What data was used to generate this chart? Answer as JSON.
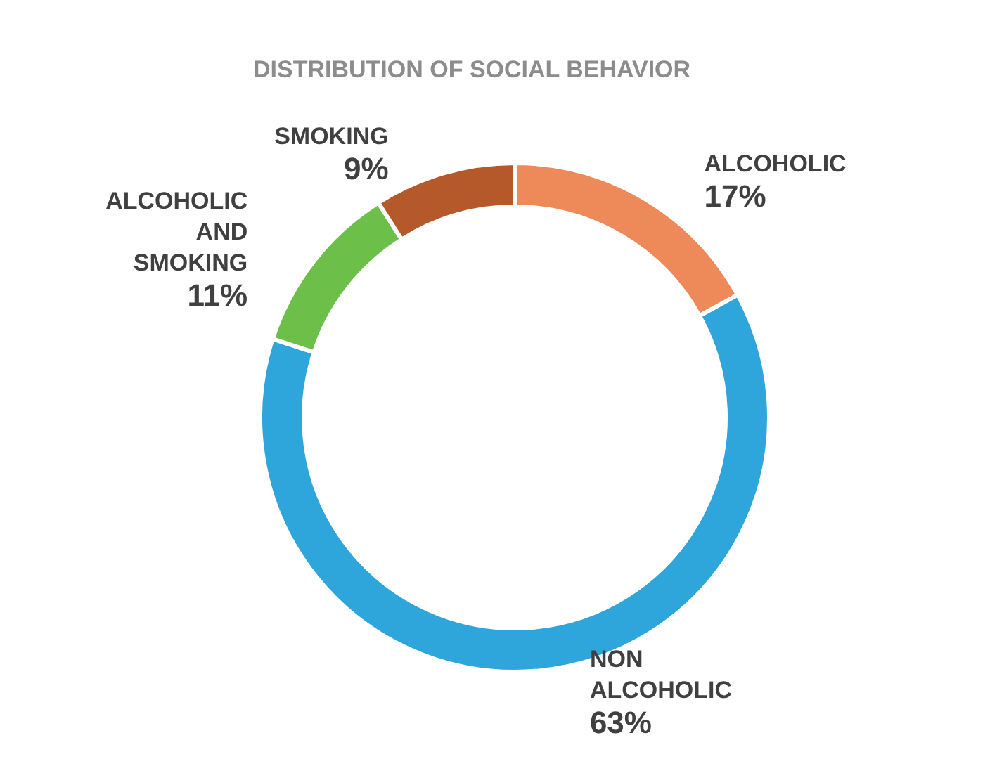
{
  "chart_data": {
    "type": "donut",
    "title": "DISTRIBUTION OF SOCIAL BEHAVIOR",
    "categories": [
      "ALCOHOLIC",
      "NON ALCOHOLIC",
      "ALCOHOLIC AND SMOKING",
      "SMOKING"
    ],
    "values": [
      17,
      63,
      11,
      9
    ],
    "value_labels": [
      "17%",
      "63%",
      "11%",
      "9%"
    ],
    "colors": [
      "#ee8a5a",
      "#2ea6dc",
      "#6cc04a",
      "#b5582a"
    ],
    "legend": false
  }
}
